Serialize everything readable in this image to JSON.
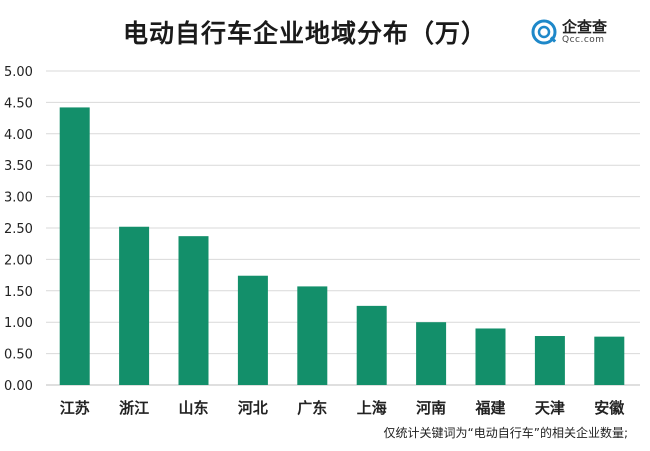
{
  "title": "电动自行车企业地域分布（万）",
  "logo": {
    "name": "企查查",
    "domain": "Qcc.com",
    "color": "#1e88c9",
    "icon": "qcc-logo-icon"
  },
  "footnote": "仅统计关键词为“电动自行车”的相关企业数量;",
  "chart_data": {
    "type": "bar",
    "title": "电动自行车企业地域分布（万）",
    "xlabel": "",
    "ylabel": "",
    "categories": [
      "江苏",
      "浙江",
      "山东",
      "河北",
      "广东",
      "上海",
      "河南",
      "福建",
      "天津",
      "安徽"
    ],
    "values": [
      4.42,
      2.52,
      2.37,
      1.74,
      1.57,
      1.26,
      1.0,
      0.9,
      0.78,
      0.77
    ],
    "ylim": [
      0,
      5
    ],
    "yticks": [
      "0.00",
      "0.50",
      "1.00",
      "1.50",
      "2.00",
      "2.50",
      "3.00",
      "3.50",
      "4.00",
      "4.50",
      "5.00"
    ],
    "grid": true,
    "legend": "none",
    "bar_color": "#138f6a",
    "grid_color": "#d9d9d9"
  }
}
